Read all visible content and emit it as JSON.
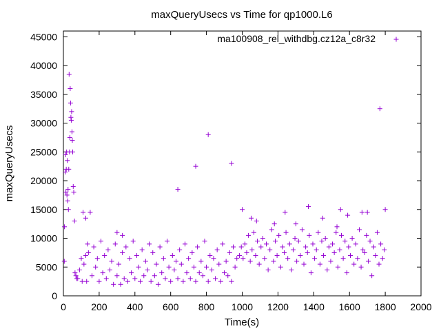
{
  "chart_data": {
    "type": "scatter",
    "title": "maxQueryUsecs vs Time for qp1000.L6",
    "xlabel": "Time(s)",
    "ylabel": "maxQueryUsecs",
    "xlim": [
      0,
      2000
    ],
    "ylim": [
      0,
      46000
    ],
    "xticks": [
      0,
      200,
      400,
      600,
      800,
      1000,
      1200,
      1400,
      1600,
      1800,
      2000
    ],
    "yticks": [
      0,
      5000,
      10000,
      15000,
      20000,
      25000,
      30000,
      35000,
      40000,
      45000
    ],
    "legend_position": "top-right",
    "marker": "+",
    "series": [
      {
        "name": "ma100908_rel_withdbg.cz12a_c8r32",
        "color": "#9400d3",
        "points": [
          [
            5,
            6000
          ],
          [
            6,
            12000
          ],
          [
            10,
            21500
          ],
          [
            12,
            24500
          ],
          [
            14,
            18000
          ],
          [
            16,
            22000
          ],
          [
            18,
            25000
          ],
          [
            20,
            17500
          ],
          [
            22,
            23500
          ],
          [
            24,
            16500
          ],
          [
            26,
            18500
          ],
          [
            28,
            15000
          ],
          [
            30,
            22000
          ],
          [
            32,
            38500
          ],
          [
            34,
            25000
          ],
          [
            36,
            27500
          ],
          [
            38,
            36000
          ],
          [
            40,
            33500
          ],
          [
            42,
            31000
          ],
          [
            44,
            30500
          ],
          [
            46,
            32000
          ],
          [
            48,
            28500
          ],
          [
            50,
            27000
          ],
          [
            52,
            25000
          ],
          [
            55,
            19000
          ],
          [
            58,
            18000
          ],
          [
            62,
            13000
          ],
          [
            65,
            4000
          ],
          [
            70,
            3500
          ],
          [
            75,
            3000
          ],
          [
            110,
            14500
          ],
          [
            125,
            13500
          ],
          [
            150,
            14500
          ],
          [
            135,
            9000
          ],
          [
            125,
            7000
          ],
          [
            115,
            5500
          ],
          [
            105,
            2500
          ],
          [
            300,
            11000
          ],
          [
            330,
            10500
          ],
          [
            640,
            18500
          ],
          [
            740,
            22500
          ],
          [
            810,
            28000
          ],
          [
            940,
            23000
          ],
          [
            1000,
            15000
          ],
          [
            1240,
            14500
          ],
          [
            1370,
            15500
          ],
          [
            1550,
            15000
          ],
          [
            1590,
            14000
          ],
          [
            1700,
            14500
          ],
          [
            1770,
            32500
          ],
          [
            1800,
            15000
          ],
          [
            1670,
            14500
          ],
          [
            1530,
            12000
          ],
          [
            1450,
            13500
          ],
          [
            1300,
            12500
          ],
          [
            1180,
            12500
          ],
          [
            1080,
            13000
          ],
          [
            1050,
            13500
          ],
          [
            80,
            3000
          ],
          [
            90,
            4500
          ],
          [
            100,
            6500
          ],
          [
            130,
            2500
          ],
          [
            140,
            7500
          ],
          [
            160,
            3500
          ],
          [
            170,
            8500
          ],
          [
            180,
            5000
          ],
          [
            190,
            6500
          ],
          [
            200,
            2500
          ],
          [
            210,
            9500
          ],
          [
            220,
            4000
          ],
          [
            230,
            7000
          ],
          [
            240,
            3000
          ],
          [
            250,
            8000
          ],
          [
            260,
            4500
          ],
          [
            270,
            6000
          ],
          [
            280,
            2000
          ],
          [
            290,
            9000
          ],
          [
            300,
            3500
          ],
          [
            310,
            5500
          ],
          [
            320,
            2000
          ],
          [
            330,
            7500
          ],
          [
            340,
            3000
          ],
          [
            350,
            8500
          ],
          [
            360,
            2500
          ],
          [
            370,
            6500
          ],
          [
            380,
            4000
          ],
          [
            390,
            9500
          ],
          [
            400,
            3000
          ],
          [
            410,
            7000
          ],
          [
            420,
            5000
          ],
          [
            430,
            2500
          ],
          [
            440,
            8000
          ],
          [
            450,
            3500
          ],
          [
            460,
            6000
          ],
          [
            470,
            4500
          ],
          [
            480,
            9000
          ],
          [
            490,
            2500
          ],
          [
            500,
            7500
          ],
          [
            510,
            3500
          ],
          [
            520,
            5500
          ],
          [
            530,
            2000
          ],
          [
            540,
            8500
          ],
          [
            550,
            4000
          ],
          [
            560,
            6500
          ],
          [
            570,
            3000
          ],
          [
            580,
            9500
          ],
          [
            590,
            5000
          ],
          [
            600,
            2500
          ],
          [
            610,
            7000
          ],
          [
            620,
            4500
          ],
          [
            630,
            6000
          ],
          [
            640,
            3000
          ],
          [
            650,
            8000
          ],
          [
            660,
            5500
          ],
          [
            670,
            2500
          ],
          [
            680,
            9000
          ],
          [
            690,
            4000
          ],
          [
            700,
            6500
          ],
          [
            710,
            3000
          ],
          [
            720,
            7500
          ],
          [
            730,
            5000
          ],
          [
            740,
            2500
          ],
          [
            750,
            8500
          ],
          [
            760,
            4000
          ],
          [
            770,
            6000
          ],
          [
            780,
            3500
          ],
          [
            790,
            9500
          ],
          [
            800,
            5000
          ],
          [
            810,
            2500
          ],
          [
            820,
            7000
          ],
          [
            830,
            4500
          ],
          [
            840,
            6500
          ],
          [
            850,
            3000
          ],
          [
            860,
            8000
          ],
          [
            870,
            5500
          ],
          [
            880,
            2500
          ],
          [
            890,
            9000
          ],
          [
            900,
            4000
          ],
          [
            910,
            6000
          ],
          [
            920,
            3500
          ],
          [
            930,
            7500
          ],
          [
            940,
            2500
          ],
          [
            950,
            8500
          ],
          [
            960,
            5000
          ],
          [
            970,
            6500
          ],
          [
            985,
            7000
          ],
          [
            995,
            8500
          ],
          [
            1005,
            6500
          ],
          [
            1015,
            9000
          ],
          [
            1025,
            7500
          ],
          [
            1035,
            10500
          ],
          [
            1045,
            6000
          ],
          [
            1055,
            8000
          ],
          [
            1065,
            11000
          ],
          [
            1075,
            7000
          ],
          [
            1085,
            9500
          ],
          [
            1095,
            5500
          ],
          [
            1105,
            8500
          ],
          [
            1115,
            10000
          ],
          [
            1125,
            6500
          ],
          [
            1135,
            9000
          ],
          [
            1145,
            4500
          ],
          [
            1155,
            8000
          ],
          [
            1165,
            11500
          ],
          [
            1175,
            6000
          ],
          [
            1185,
            9500
          ],
          [
            1195,
            7000
          ],
          [
            1205,
            10500
          ],
          [
            1215,
            5000
          ],
          [
            1225,
            8500
          ],
          [
            1235,
            7500
          ],
          [
            1245,
            11000
          ],
          [
            1255,
            6500
          ],
          [
            1265,
            9000
          ],
          [
            1275,
            4500
          ],
          [
            1285,
            8000
          ],
          [
            1295,
            10000
          ],
          [
            1305,
            6000
          ],
          [
            1315,
            9500
          ],
          [
            1325,
            7000
          ],
          [
            1335,
            11500
          ],
          [
            1345,
            5500
          ],
          [
            1355,
            8500
          ],
          [
            1365,
            7500
          ],
          [
            1375,
            10500
          ],
          [
            1385,
            4000
          ],
          [
            1395,
            9000
          ],
          [
            1405,
            6500
          ],
          [
            1415,
            8000
          ],
          [
            1425,
            11000
          ],
          [
            1435,
            5500
          ],
          [
            1445,
            9500
          ],
          [
            1455,
            7000
          ],
          [
            1465,
            10000
          ],
          [
            1475,
            4500
          ],
          [
            1485,
            8500
          ],
          [
            1495,
            6000
          ],
          [
            1505,
            9000
          ],
          [
            1515,
            7500
          ],
          [
            1525,
            11000
          ],
          [
            1535,
            5000
          ],
          [
            1545,
            8000
          ],
          [
            1555,
            10500
          ],
          [
            1565,
            6500
          ],
          [
            1575,
            9500
          ],
          [
            1585,
            4000
          ],
          [
            1595,
            8500
          ],
          [
            1605,
            7000
          ],
          [
            1615,
            10000
          ],
          [
            1625,
            5500
          ],
          [
            1635,
            9000
          ],
          [
            1645,
            6500
          ],
          [
            1655,
            11500
          ],
          [
            1665,
            5000
          ],
          [
            1675,
            8000
          ],
          [
            1685,
            7500
          ],
          [
            1695,
            10500
          ],
          [
            1705,
            6000
          ],
          [
            1715,
            9500
          ],
          [
            1725,
            3500
          ],
          [
            1735,
            8500
          ],
          [
            1745,
            7000
          ],
          [
            1755,
            11000
          ],
          [
            1765,
            5500
          ],
          [
            1775,
            9000
          ],
          [
            1785,
            6500
          ],
          [
            1795,
            8000
          ]
        ]
      }
    ]
  }
}
